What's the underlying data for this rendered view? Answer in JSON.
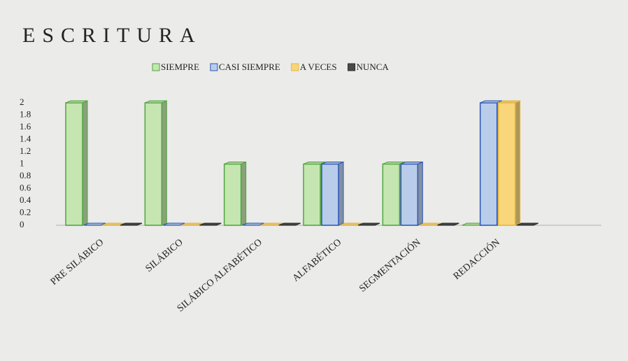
{
  "chart_data": {
    "type": "bar",
    "title": "ESCRITURA",
    "categories": [
      "PRE SILÁBICO",
      "SILÁBICO",
      "SILÁBICO ALFABÉTICO",
      "ALFABÉTICO",
      "SEGMENTACIÓN",
      "REDACCIÓN"
    ],
    "series": [
      {
        "name": "SIEMPRE",
        "color": "#c5e6b0",
        "values": [
          2,
          2,
          1,
          1,
          1,
          0
        ]
      },
      {
        "name": "CASI SIEMPRE",
        "color": "#b9cdea",
        "values": [
          0,
          0,
          0,
          1,
          1,
          2
        ]
      },
      {
        "name": "A VECES",
        "color": "#f9d679",
        "values": [
          0,
          0,
          0,
          0,
          0,
          2
        ]
      },
      {
        "name": "NUNCA",
        "color": "#4a4a4a",
        "values": [
          0,
          0,
          0,
          0,
          0,
          0
        ]
      }
    ],
    "ylim": [
      0,
      2
    ],
    "yticks": [
      0,
      0.2,
      0.4,
      0.6,
      0.8,
      1,
      1.2,
      1.4,
      1.6,
      1.8,
      2
    ],
    "grid": false,
    "legend": "top"
  }
}
